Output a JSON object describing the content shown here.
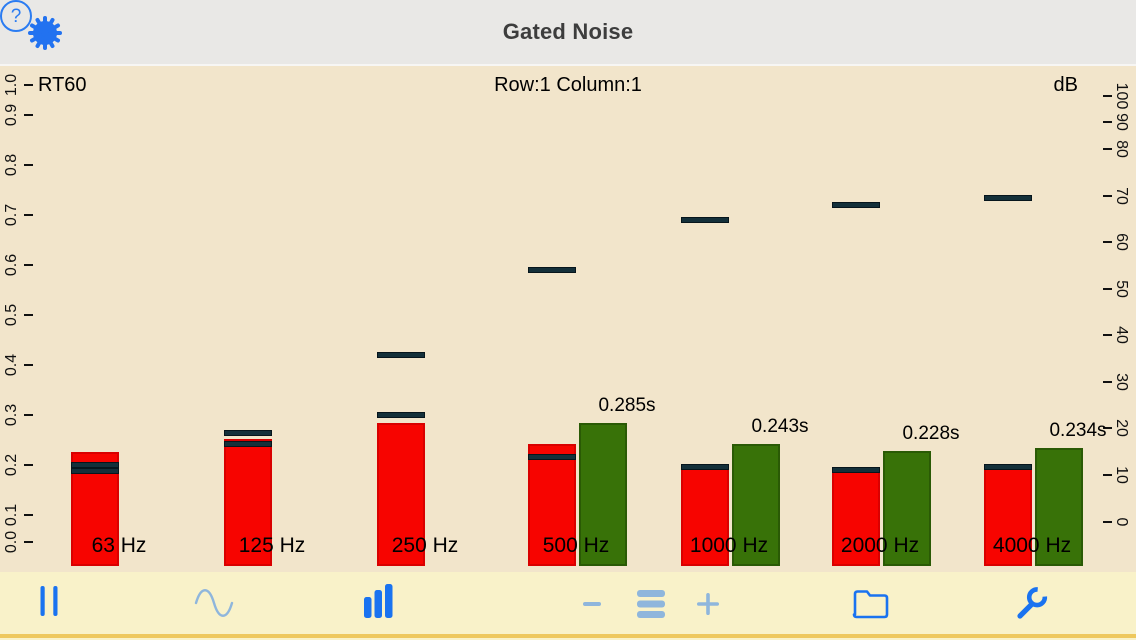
{
  "top_bar": {
    "title": "Gated Noise",
    "help_glyph": "?"
  },
  "chart": {
    "left_axis_title": "RT60",
    "center_title": "Row:1 Column:1",
    "right_axis_title": "dB"
  },
  "chart_data": {
    "type": "bar",
    "title": "Gated Noise",
    "subtitle": "Row:1 Column:1",
    "categories": [
      "63 Hz",
      "125 Hz",
      "250 Hz",
      "500 Hz",
      "1000 Hz",
      "2000 Hz",
      "4000 Hz"
    ],
    "series": [
      {
        "name": "Band level (red bars, dB on right axis)",
        "values": [
          14.9,
          17.7,
          21.1,
          16.6,
          11.5,
          11.3,
          11.9
        ]
      },
      {
        "name": "Level markers (dark dashes, dB on right axis)",
        "values": [
          [
            12.8,
            11.6
          ],
          [
            19.6,
            17.3
          ],
          [
            36.4,
            23.6
          ],
          [
            54.6,
            14.5
          ],
          [
            65.4,
            12.4
          ],
          [
            68.7,
            11.8
          ],
          [
            70.1,
            12.3
          ]
        ]
      },
      {
        "name": "RT60 (green bars, seconds on left axis)",
        "values": [
          null,
          null,
          null,
          0.285,
          0.243,
          0.228,
          0.234
        ]
      }
    ],
    "rt60_labels": [
      "",
      "",
      "",
      "0.285s",
      "0.243s",
      "0.228s",
      "0.234s"
    ],
    "left_axis": {
      "title": "RT60",
      "unit": "s",
      "range": [
        0,
        1
      ],
      "ticks": [
        "0.0",
        "0.1",
        "0.2",
        "0.3",
        "0.4",
        "0.5",
        "0.6",
        "0.7",
        "0.8",
        "0.9",
        "1.0"
      ]
    },
    "right_axis": {
      "title": "dB",
      "range": [
        0,
        100
      ],
      "ticks": [
        "0",
        "10",
        "20",
        "30",
        "40",
        "50",
        "60",
        "70",
        "80",
        "90",
        "100"
      ]
    },
    "grid": false,
    "legend": false,
    "colors": {
      "level_bar": "#f70400",
      "rt60_bar": "#387208",
      "marker_dash": "#14303a",
      "plot_background": "#f2e5cb"
    }
  },
  "toolbar": {
    "accent_blue": "#1a73f0",
    "dimmed_blue": "#8fb6dc",
    "items": [
      {
        "icon": "pause-icon",
        "state": "active"
      },
      {
        "icon": "sine-wave-icon",
        "state": "dimmed"
      },
      {
        "icon": "bar-chart-icon",
        "state": "active"
      },
      {
        "icon": "minus-icon",
        "state": "dimmed"
      },
      {
        "icon": "lines-icon",
        "state": "dimmed"
      },
      {
        "icon": "plus-icon",
        "state": "dimmed"
      },
      {
        "icon": "folder-icon",
        "state": "active"
      },
      {
        "icon": "wrench-icon",
        "state": "active"
      }
    ]
  }
}
